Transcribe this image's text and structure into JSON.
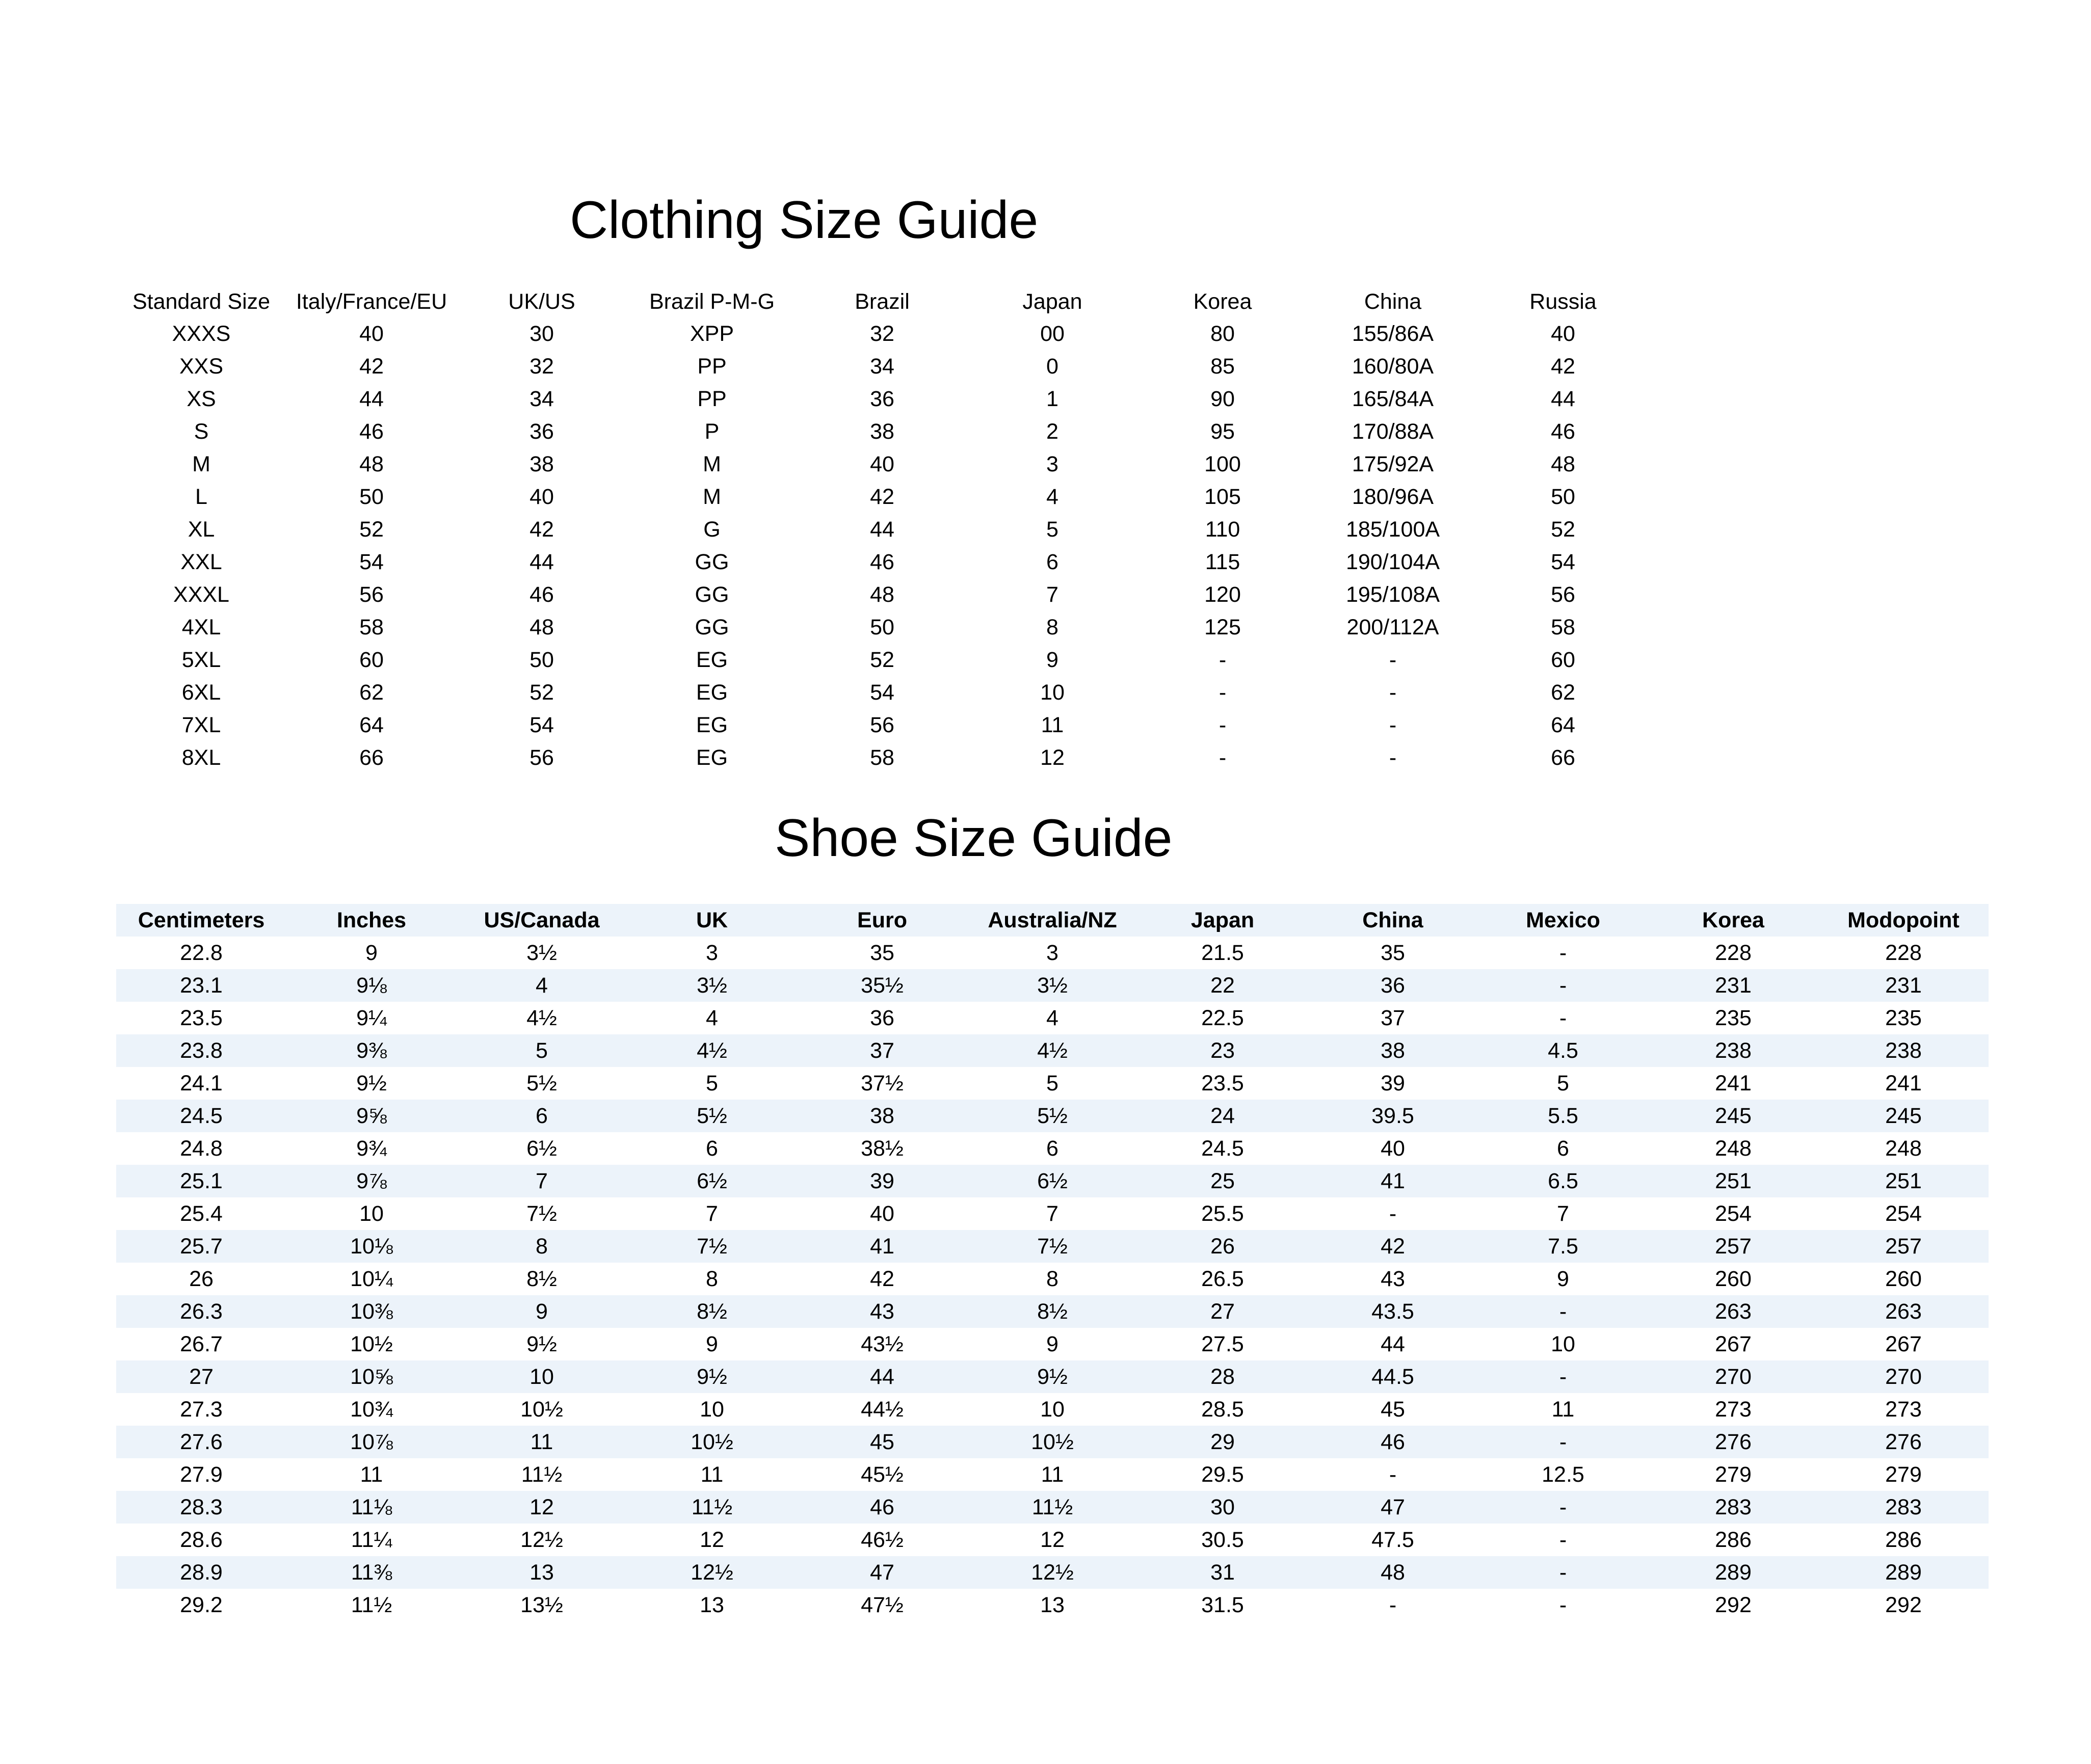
{
  "clothing": {
    "title": "Clothing Size Guide",
    "headers": [
      "Standard Size",
      "Italy/France/EU",
      "UK/US",
      "Brazil P-M-G",
      "Brazil",
      "Japan",
      "Korea",
      "China",
      "Russia"
    ],
    "rows": [
      [
        "XXXS",
        "40",
        "30",
        "XPP",
        "32",
        "00",
        "80",
        "155/86A",
        "40"
      ],
      [
        "XXS",
        "42",
        "32",
        "PP",
        "34",
        "0",
        "85",
        "160/80A",
        "42"
      ],
      [
        "XS",
        "44",
        "34",
        "PP",
        "36",
        "1",
        "90",
        "165/84A",
        "44"
      ],
      [
        "S",
        "46",
        "36",
        "P",
        "38",
        "2",
        "95",
        "170/88A",
        "46"
      ],
      [
        "M",
        "48",
        "38",
        "M",
        "40",
        "3",
        "100",
        "175/92A",
        "48"
      ],
      [
        "L",
        "50",
        "40",
        "M",
        "42",
        "4",
        "105",
        "180/96A",
        "50"
      ],
      [
        "XL",
        "52",
        "42",
        "G",
        "44",
        "5",
        "110",
        "185/100A",
        "52"
      ],
      [
        "XXL",
        "54",
        "44",
        "GG",
        "46",
        "6",
        "115",
        "190/104A",
        "54"
      ],
      [
        "XXXL",
        "56",
        "46",
        "GG",
        "48",
        "7",
        "120",
        "195/108A",
        "56"
      ],
      [
        "4XL",
        "58",
        "48",
        "GG",
        "50",
        "8",
        "125",
        "200/112A",
        "58"
      ],
      [
        "5XL",
        "60",
        "50",
        "EG",
        "52",
        "9",
        "-",
        "-",
        "60"
      ],
      [
        "6XL",
        "62",
        "52",
        "EG",
        "54",
        "10",
        "-",
        "-",
        "62"
      ],
      [
        "7XL",
        "64",
        "54",
        "EG",
        "56",
        "11",
        "-",
        "-",
        "64"
      ],
      [
        "8XL",
        "66",
        "56",
        "EG",
        "58",
        "12",
        "-",
        "-",
        "66"
      ]
    ]
  },
  "shoes": {
    "title": "Shoe Size Guide",
    "headers": [
      "Centimeters",
      "Inches",
      "US/Canada",
      "UK",
      "Euro",
      "Australia/NZ",
      "Japan",
      "China",
      "Mexico",
      "Korea",
      "Modopoint"
    ],
    "rows": [
      [
        "22.8",
        "9",
        "3½",
        "3",
        "35",
        "3",
        "21.5",
        "35",
        "-",
        "228",
        "228"
      ],
      [
        "23.1",
        "9⅛",
        "4",
        "3½",
        "35½",
        "3½",
        "22",
        "36",
        "-",
        "231",
        "231"
      ],
      [
        "23.5",
        "9¼",
        "4½",
        "4",
        "36",
        "4",
        "22.5",
        "37",
        "-",
        "235",
        "235"
      ],
      [
        "23.8",
        "9⅜",
        "5",
        "4½",
        "37",
        "4½",
        "23",
        "38",
        "4.5",
        "238",
        "238"
      ],
      [
        "24.1",
        "9½",
        "5½",
        "5",
        "37½",
        "5",
        "23.5",
        "39",
        "5",
        "241",
        "241"
      ],
      [
        "24.5",
        "9⅝",
        "6",
        "5½",
        "38",
        "5½",
        "24",
        "39.5",
        "5.5",
        "245",
        "245"
      ],
      [
        "24.8",
        "9¾",
        "6½",
        "6",
        "38½",
        "6",
        "24.5",
        "40",
        "6",
        "248",
        "248"
      ],
      [
        "25.1",
        "9⅞",
        "7",
        "6½",
        "39",
        "6½",
        "25",
        "41",
        "6.5",
        "251",
        "251"
      ],
      [
        "25.4",
        "10",
        "7½",
        "7",
        "40",
        "7",
        "25.5",
        "-",
        "7",
        "254",
        "254"
      ],
      [
        "25.7",
        "10⅛",
        "8",
        "7½",
        "41",
        "7½",
        "26",
        "42",
        "7.5",
        "257",
        "257"
      ],
      [
        "26",
        "10¼",
        "8½",
        "8",
        "42",
        "8",
        "26.5",
        "43",
        "9",
        "260",
        "260"
      ],
      [
        "26.3",
        "10⅜",
        "9",
        "8½",
        "43",
        "8½",
        "27",
        "43.5",
        "-",
        "263",
        "263"
      ],
      [
        "26.7",
        "10½",
        "9½",
        "9",
        "43½",
        "9",
        "27.5",
        "44",
        "10",
        "267",
        "267"
      ],
      [
        "27",
        "10⅝",
        "10",
        "9½",
        "44",
        "9½",
        "28",
        "44.5",
        "-",
        "270",
        "270"
      ],
      [
        "27.3",
        "10¾",
        "10½",
        "10",
        "44½",
        "10",
        "28.5",
        "45",
        "11",
        "273",
        "273"
      ],
      [
        "27.6",
        "10⅞",
        "11",
        "10½",
        "45",
        "10½",
        "29",
        "46",
        "-",
        "276",
        "276"
      ],
      [
        "27.9",
        "11",
        "11½",
        "11",
        "45½",
        "11",
        "29.5",
        "-",
        "12.5",
        "279",
        "279"
      ],
      [
        "28.3",
        "11⅛",
        "12",
        "11½",
        "46",
        "11½",
        "30",
        "47",
        "-",
        "283",
        "283"
      ],
      [
        "28.6",
        "11¼",
        "12½",
        "12",
        "46½",
        "12",
        "30.5",
        "47.5",
        "-",
        "286",
        "286"
      ],
      [
        "28.9",
        "11⅜",
        "13",
        "12½",
        "47",
        "12½",
        "31",
        "48",
        "-",
        "289",
        "289"
      ],
      [
        "29.2",
        "11½",
        "13½",
        "13",
        "47½",
        "13",
        "31.5",
        "-",
        "-",
        "292",
        "292"
      ]
    ]
  }
}
